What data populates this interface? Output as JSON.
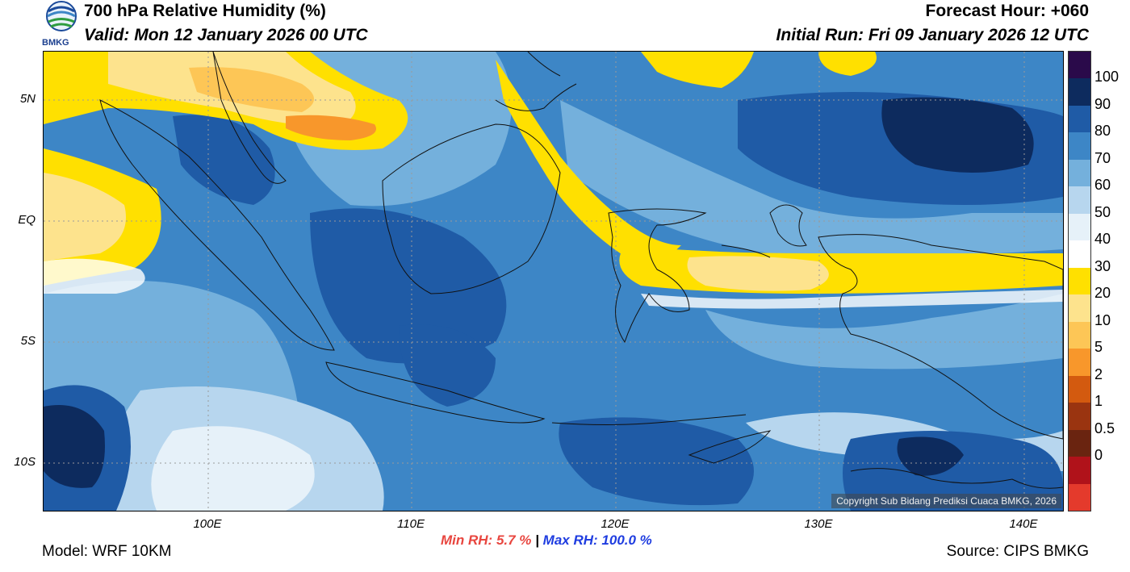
{
  "header": {
    "title": "700 hPa Relative Humidity (%)",
    "valid": "Valid: Mon 12 January 2026 00 UTC",
    "forecast_hour": "Forecast Hour: +060",
    "initial_run": "Initial Run: Fri 09 January 2026 12 UTC",
    "logo_text": "BMKG"
  },
  "map": {
    "lat_labels": [
      "5N",
      "EQ",
      "5S",
      "10S"
    ],
    "lon_labels": [
      "100E",
      "110E",
      "120E",
      "130E",
      "140E"
    ],
    "copyright": "Copyright Sub Bidang Prediksi Cuaca BMKG, 2026"
  },
  "colorbar": {
    "labels": [
      "100",
      "90",
      "80",
      "70",
      "60",
      "50",
      "40",
      "30",
      "20",
      "10",
      "5",
      "2",
      "1",
      "0.5",
      "0"
    ],
    "colors": [
      "#2a0a4a",
      "#0d2b5e",
      "#1f5ba6",
      "#3d86c6",
      "#74b0dc",
      "#b7d6ee",
      "#e6f1f9",
      "#ffffff",
      "#ffe000",
      "#fde38d",
      "#fdc656",
      "#f8972b",
      "#d35a0f",
      "#9a3410",
      "#6a2410",
      "#b0121a",
      "#e43a2c"
    ]
  },
  "stats": {
    "min_label": "Min RH:",
    "min_value": "5.7 %",
    "separator": "|",
    "max_label": "Max RH:",
    "max_value": "100.0 %"
  },
  "footer": {
    "model": "Model: WRF 10KM",
    "source": "Source: CIPS BMKG"
  }
}
